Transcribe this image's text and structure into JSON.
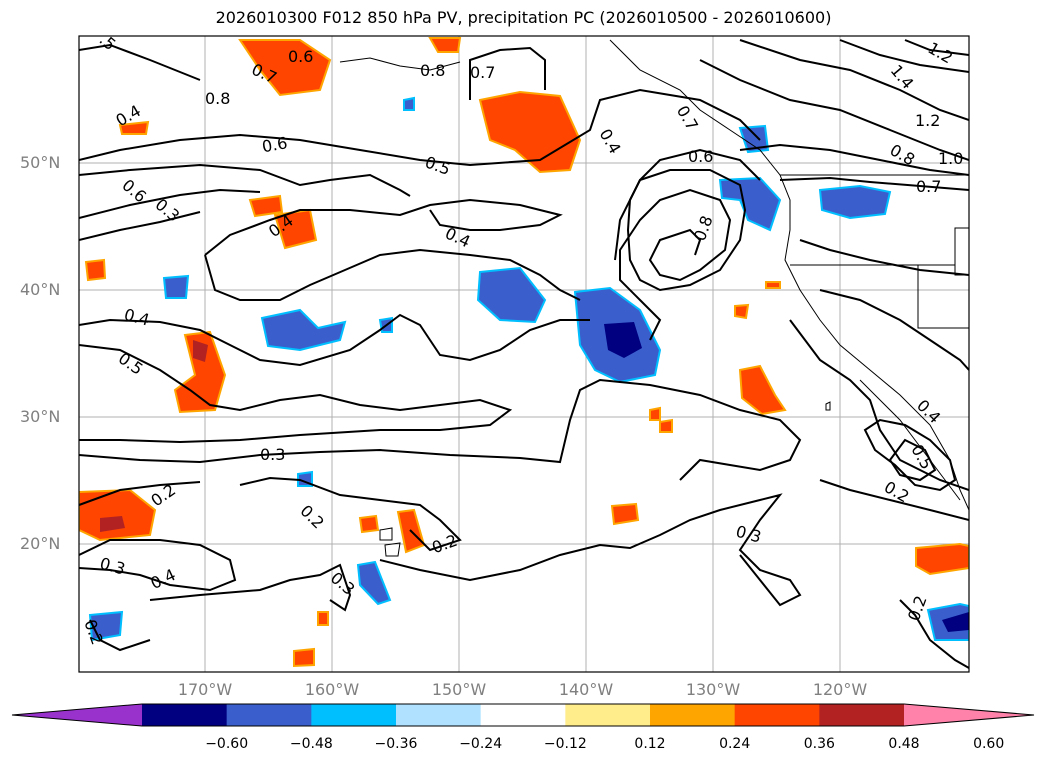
{
  "title": "2026010300 F012 850 hPa PV, precipitation PC (2026010500 - 2026010600)",
  "axes": {
    "lat_labels": [
      "50°N",
      "40°N",
      "30°N",
      "20°N"
    ],
    "lon_labels": [
      "170°W",
      "160°W",
      "150°W",
      "140°W",
      "130°W",
      "120°W"
    ]
  },
  "contour_labels": [
    {
      "text": ".5"
    },
    {
      "text": "0.7"
    },
    {
      "text": "0.6"
    },
    {
      "text": "0.8"
    },
    {
      "text": "0.7"
    },
    {
      "text": "0.4"
    },
    {
      "text": "0.8"
    },
    {
      "text": "0.6"
    },
    {
      "text": "0.5"
    },
    {
      "text": "0.4"
    },
    {
      "text": "0.6"
    },
    {
      "text": "0.8"
    },
    {
      "text": "0.7"
    },
    {
      "text": "1.4"
    },
    {
      "text": "1.2"
    },
    {
      "text": "1.2"
    },
    {
      "text": "0.8"
    },
    {
      "text": "1.0"
    },
    {
      "text": "0.7"
    },
    {
      "text": "0.6"
    },
    {
      "text": "0.3"
    },
    {
      "text": "0.4"
    },
    {
      "text": "0.4"
    },
    {
      "text": "0.4"
    },
    {
      "text": "0.5"
    },
    {
      "text": "0.3"
    },
    {
      "text": "0.2"
    },
    {
      "text": "0.2"
    },
    {
      "text": "0.2"
    },
    {
      "text": "0.3"
    },
    {
      "text": "0.4"
    },
    {
      "text": "0.3"
    },
    {
      "text": "0.3"
    },
    {
      "text": "0.2"
    },
    {
      "text": "0.4"
    },
    {
      "text": "0.5"
    },
    {
      "text": "0.2"
    },
    {
      "text": "0.2"
    }
  ],
  "colorbar": {
    "ticks": [
      "−0.60",
      "−0.48",
      "−0.36",
      "−0.24",
      "−0.12",
      "0.12",
      "0.24",
      "0.36",
      "0.48",
      "0.60"
    ],
    "colors": [
      "#9932cc",
      "#000080",
      "#3a5fcd",
      "#00bfff",
      "#b0e2ff",
      "#ffffff",
      "#ffec8b",
      "#ffa500",
      "#ff4500",
      "#b22222",
      "#ff82ab"
    ]
  },
  "field_colors": {
    "positive": "#ff4500",
    "positive_strong": "#b22222",
    "positive_edge": "#ffa500",
    "positive_fringe": "#ffec8b",
    "negative": "#3a5fcd",
    "negative_strong": "#000080",
    "negative_edge": "#00bfff",
    "negative_fringe": "#b0e2ff"
  }
}
